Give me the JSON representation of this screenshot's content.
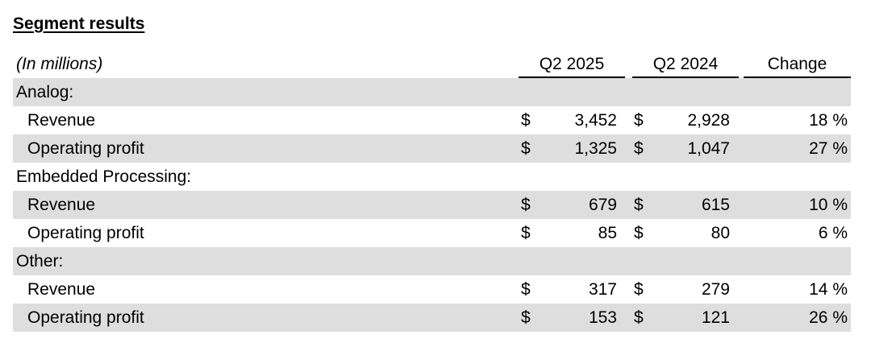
{
  "title": "Segment results",
  "header": {
    "units": "(In millions)",
    "col1": "Q2 2025",
    "col2": "Q2 2024",
    "col3": "Change"
  },
  "rows": [
    {
      "label": "Analog:"
    },
    {
      "label": "Revenue",
      "c1": "$",
      "v1": "3,452",
      "c2": "$",
      "v2": "2,928",
      "chg": "18 %"
    },
    {
      "label": "Operating profit",
      "c1": "$",
      "v1": "1,325",
      "c2": "$",
      "v2": "1,047",
      "chg": "27 %"
    },
    {
      "label": "Embedded Processing:"
    },
    {
      "label": "Revenue",
      "c1": "$",
      "v1": "679",
      "c2": "$",
      "v2": "615",
      "chg": "10 %"
    },
    {
      "label": "Operating profit",
      "c1": "$",
      "v1": "85",
      "c2": "$",
      "v2": "80",
      "chg": "6 %"
    },
    {
      "label": "Other:"
    },
    {
      "label": "Revenue",
      "c1": "$",
      "v1": "317",
      "c2": "$",
      "v2": "279",
      "chg": "14 %"
    },
    {
      "label": "Operating profit",
      "c1": "$",
      "v1": "153",
      "c2": "$",
      "v2": "121",
      "chg": "26 %"
    }
  ]
}
